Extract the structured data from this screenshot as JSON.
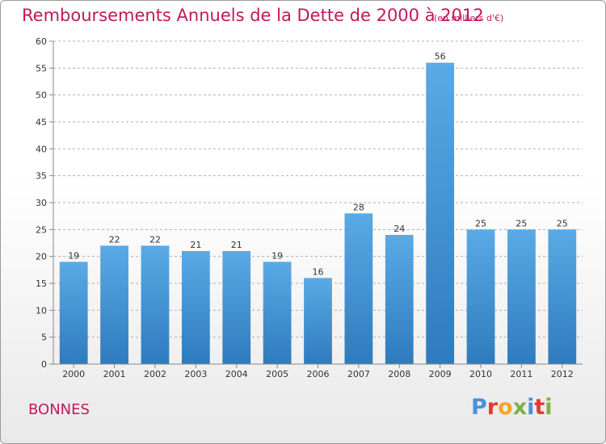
{
  "title": "Remboursements Annuels de la Dette de 2000 à 2012",
  "subtitle": "(en milliers d'€)",
  "commune": "BONNES",
  "logo": {
    "text": "Proxiti",
    "letter_colors": [
      "#4a90d9",
      "#e23b2e",
      "#f5a623",
      "#7cb342",
      "#4a90d9",
      "#e23b2e",
      "#7cb342"
    ]
  },
  "colors": {
    "title": "#c2185b",
    "bar_top": "#5aaae6",
    "bar_bottom": "#2e7bbd",
    "axis": "#888888",
    "grid": "#b0b0b0"
  },
  "chart_data": {
    "type": "bar",
    "categories": [
      "2000",
      "2001",
      "2002",
      "2003",
      "2004",
      "2005",
      "2006",
      "2007",
      "2008",
      "2009",
      "2010",
      "2011",
      "2012"
    ],
    "values": [
      19,
      22,
      22,
      21,
      21,
      19,
      16,
      28,
      24,
      56,
      25,
      25,
      25
    ],
    "ylim": [
      0,
      60
    ],
    "yticks": [
      0,
      5,
      10,
      15,
      20,
      25,
      30,
      35,
      40,
      45,
      50,
      55,
      60
    ],
    "grid": "horizontal dashed",
    "legend": "none"
  }
}
